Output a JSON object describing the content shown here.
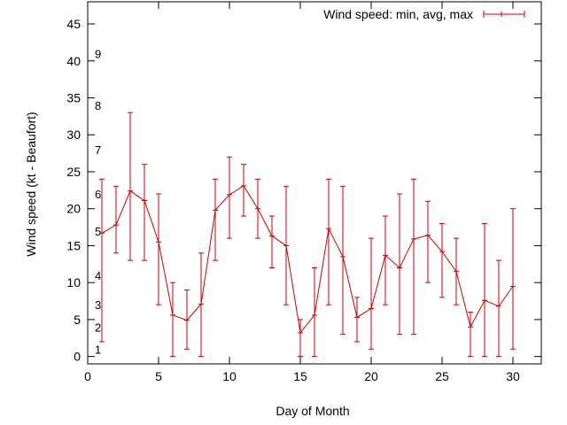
{
  "chart_data": {
    "type": "line",
    "title": "",
    "xlabel": "Day of Month",
    "ylabel": "Wind speed (kt - Beaufort)",
    "xlim": [
      0,
      32
    ],
    "ylim": [
      -1,
      48
    ],
    "xticks": [
      0,
      5,
      10,
      15,
      20,
      25,
      30
    ],
    "yticks": [
      0,
      5,
      10,
      15,
      20,
      25,
      30,
      35,
      40,
      45
    ],
    "legend": "top-right",
    "grid": false,
    "series": [
      {
        "name": "Wind speed: min, avg, max",
        "color": "#cc0000",
        "x": [
          1,
          2,
          3,
          4,
          5,
          6,
          7,
          8,
          9,
          10,
          11,
          12,
          13,
          14,
          15,
          16,
          17,
          18,
          19,
          20,
          21,
          22,
          23,
          24,
          25,
          26,
          27,
          28,
          29,
          30
        ],
        "avg": [
          16.7,
          17.8,
          22.4,
          21.1,
          15.5,
          5.6,
          4.9,
          7.1,
          19.8,
          21.9,
          23.1,
          20,
          16.3,
          15,
          3.2,
          5.6,
          17.3,
          13.5,
          5.3,
          6.5,
          13.7,
          12,
          15.9,
          16.4,
          14.2,
          11.5,
          4,
          7.6,
          6.8,
          9.5
        ],
        "min": [
          2,
          14,
          13,
          13,
          7,
          0,
          1,
          0,
          13,
          16,
          19,
          16,
          12,
          7,
          0,
          0,
          7,
          3,
          2,
          1,
          7,
          3,
          3,
          10,
          8,
          7,
          0,
          0,
          0,
          1
        ],
        "max": [
          24,
          23,
          33,
          26,
          22,
          10,
          9,
          14,
          24,
          27,
          26,
          24,
          19,
          23,
          5,
          12,
          24,
          23,
          8,
          16,
          19,
          22,
          24,
          21,
          18,
          16,
          6,
          18,
          13,
          20
        ]
      }
    ],
    "beaufort_labels": [
      {
        "text": "1",
        "y": 1
      },
      {
        "text": "2",
        "y": 4
      },
      {
        "text": "3",
        "y": 7
      },
      {
        "text": "4",
        "y": 11
      },
      {
        "text": "5",
        "y": 17
      },
      {
        "text": "6",
        "y": 22
      },
      {
        "text": "7",
        "y": 28
      },
      {
        "text": "8",
        "y": 34
      },
      {
        "text": "9",
        "y": 41
      }
    ]
  }
}
